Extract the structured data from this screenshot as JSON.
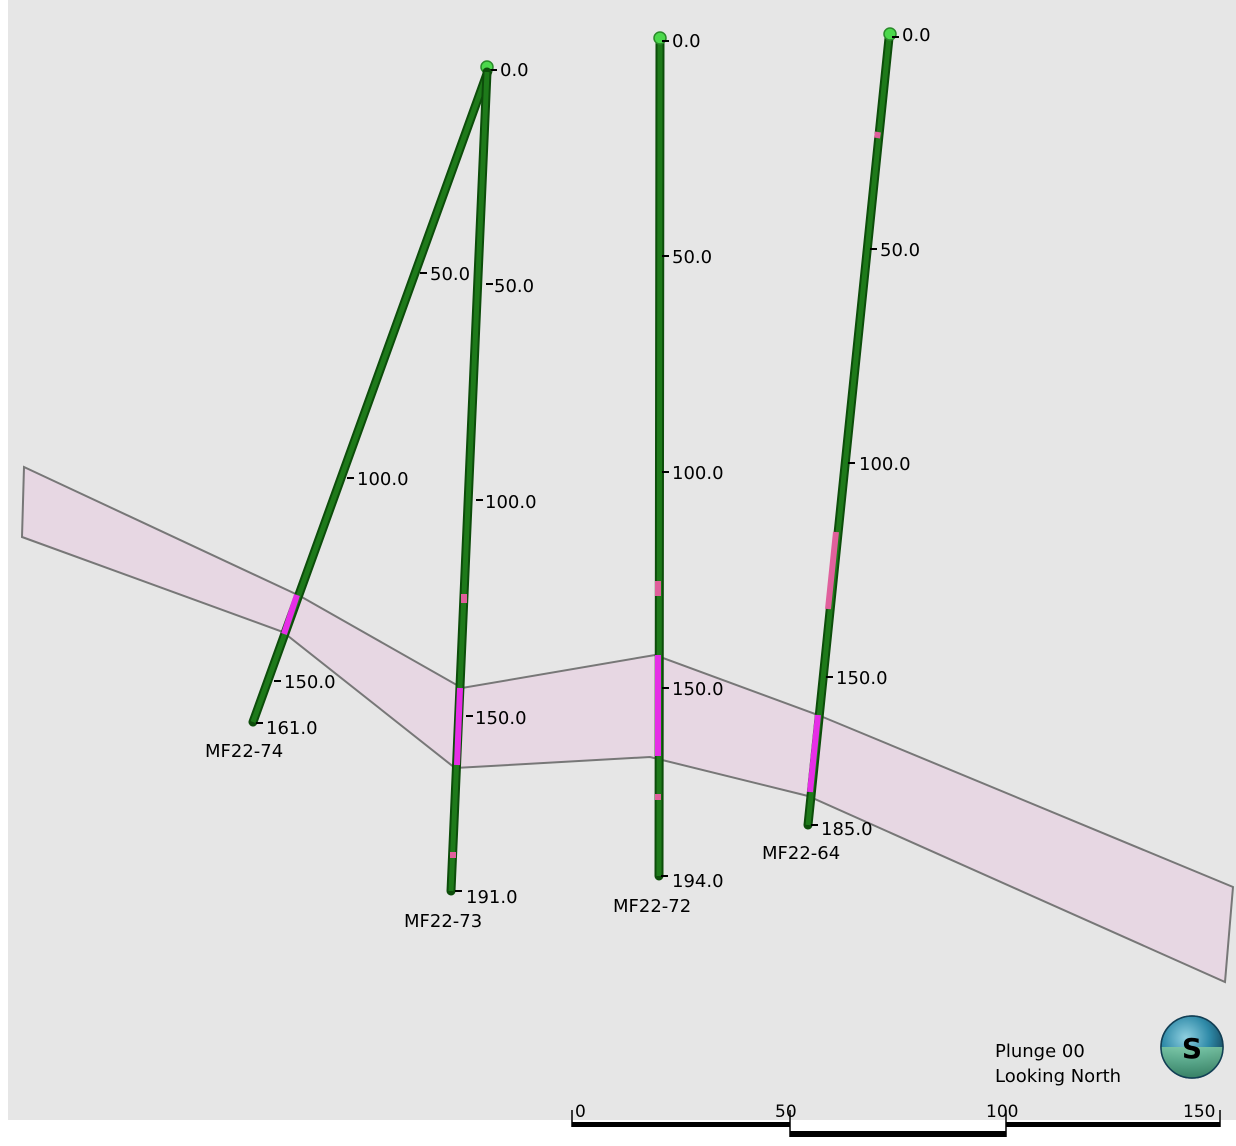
{
  "view": {
    "plunge_label": "Plunge 00",
    "looking_label": "Looking North",
    "compass_letter": "S"
  },
  "scale_bar": {
    "labels": [
      "0",
      "50",
      "100",
      "150"
    ]
  },
  "holes": [
    {
      "id": "MF22-74",
      "name": "MF22-74",
      "depth_labels": [
        "0.0",
        "50.0",
        "100.0",
        "150.0",
        "161.0"
      ]
    },
    {
      "id": "MF22-73",
      "name": "MF22-73",
      "depth_labels": [
        "0.0",
        "50.0",
        "100.0",
        "150.0",
        "191.0"
      ]
    },
    {
      "id": "MF22-72",
      "name": "MF22-72",
      "depth_labels": [
        "0.0",
        "50.0",
        "100.0",
        "150.0",
        "194.0"
      ]
    },
    {
      "id": "MF22-64",
      "name": "MF22-64",
      "depth_labels": [
        "0.0",
        "50.0",
        "100.0",
        "150.0",
        "185.0"
      ]
    }
  ],
  "colors": {
    "background": "#e6e6e6",
    "drillhole": "#1e7a1a",
    "drillhole_dark": "#0c4d0a",
    "collar": "#4cd84c",
    "intercept_magenta": "#e62ee6",
    "intercept_pink": "#e0609c",
    "zone_fill": "#e7d7e3",
    "zone_edge": "#777777"
  }
}
